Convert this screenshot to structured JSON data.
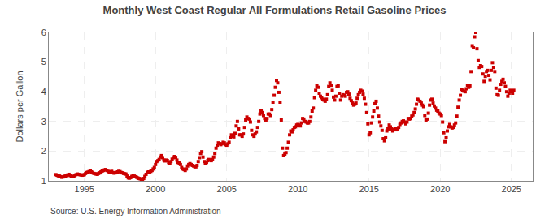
{
  "chart_data": {
    "type": "scatter",
    "title": "Monthly West Coast Regular All Formulations Retail Gasoline Prices",
    "ylabel": "Dollars per Gallon",
    "annotations": [
      "Source: U.S. Energy Information Administration"
    ],
    "color": "#cc0000",
    "marker": "square",
    "grid": true,
    "xlim": [
      1992.5,
      2026.5
    ],
    "xticks": [
      1995,
      2000,
      2005,
      2010,
      2015,
      2020,
      2025
    ],
    "ylim": [
      1,
      6
    ],
    "yticks": [
      1,
      2,
      3,
      4,
      5,
      6
    ],
    "x": [
      1993,
      1993.0833333333333,
      1993.1666666666667,
      1993.25,
      1993.3333333333333,
      1993.4166666666667,
      1993.5,
      1993.5833333333333,
      1993.6666666666667,
      1993.75,
      1993.8333333333333,
      1993.9166666666667,
      1994,
      1994.0833333333333,
      1994.1666666666667,
      1994.25,
      1994.3333333333333,
      1994.4166666666667,
      1994.5,
      1994.5833333333333,
      1994.6666666666667,
      1994.75,
      1994.8333333333333,
      1994.9166666666667,
      1995,
      1995.0833333333333,
      1995.1666666666667,
      1995.25,
      1995.3333333333333,
      1995.4166666666667,
      1995.5,
      1995.5833333333333,
      1995.6666666666667,
      1995.75,
      1995.8333333333333,
      1995.9166666666667,
      1996,
      1996.0833333333333,
      1996.1666666666667,
      1996.25,
      1996.3333333333333,
      1996.4166666666667,
      1996.5,
      1996.5833333333333,
      1996.6666666666667,
      1996.75,
      1996.8333333333333,
      1996.9166666666667,
      1997,
      1997.0833333333333,
      1997.1666666666667,
      1997.25,
      1997.3333333333333,
      1997.4166666666667,
      1997.5,
      1997.5833333333333,
      1997.6666666666667,
      1997.75,
      1997.8333333333333,
      1997.9166666666667,
      1998,
      1998.0833333333333,
      1998.1666666666667,
      1998.25,
      1998.3333333333333,
      1998.4166666666667,
      1998.5,
      1998.5833333333333,
      1998.6666666666667,
      1998.75,
      1998.8333333333333,
      1998.9166666666667,
      1999,
      1999.0833333333333,
      1999.1666666666667,
      1999.25,
      1999.3333333333333,
      1999.4166666666667,
      1999.5,
      1999.5833333333333,
      1999.6666666666667,
      1999.75,
      1999.8333333333333,
      1999.9166666666667,
      2000,
      2000.0833333333333,
      2000.1666666666667,
      2000.25,
      2000.3333333333333,
      2000.4166666666667,
      2000.5,
      2000.5833333333333,
      2000.6666666666667,
      2000.75,
      2000.8333333333333,
      2000.9166666666667,
      2001,
      2001.0833333333333,
      2001.1666666666667,
      2001.25,
      2001.3333333333333,
      2001.4166666666667,
      2001.5,
      2001.5833333333333,
      2001.6666666666667,
      2001.75,
      2001.8333333333333,
      2001.9166666666667,
      2002,
      2002.0833333333333,
      2002.1666666666667,
      2002.25,
      2002.3333333333333,
      2002.4166666666667,
      2002.5,
      2002.5833333333333,
      2002.6666666666667,
      2002.75,
      2002.8333333333333,
      2002.9166666666667,
      2003,
      2003.0833333333333,
      2003.1666666666667,
      2003.25,
      2003.3333333333333,
      2003.4166666666667,
      2003.5,
      2003.5833333333333,
      2003.6666666666667,
      2003.75,
      2003.8333333333333,
      2003.9166666666667,
      2004,
      2004.0833333333333,
      2004.1666666666667,
      2004.25,
      2004.3333333333333,
      2004.4166666666667,
      2004.5,
      2004.5833333333333,
      2004.6666666666667,
      2004.75,
      2004.8333333333333,
      2004.9166666666667,
      2005,
      2005.0833333333333,
      2005.1666666666667,
      2005.25,
      2005.3333333333333,
      2005.4166666666667,
      2005.5,
      2005.5833333333333,
      2005.6666666666667,
      2005.75,
      2005.8333333333333,
      2005.9166666666667,
      2006,
      2006.0833333333333,
      2006.1666666666667,
      2006.25,
      2006.3333333333333,
      2006.4166666666667,
      2006.5,
      2006.5833333333333,
      2006.6666666666667,
      2006.75,
      2006.8333333333333,
      2006.9166666666667,
      2007,
      2007.0833333333333,
      2007.1666666666667,
      2007.25,
      2007.3333333333333,
      2007.4166666666667,
      2007.5,
      2007.5833333333333,
      2007.6666666666667,
      2007.75,
      2007.8333333333333,
      2007.9166666666667,
      2008,
      2008.0833333333333,
      2008.1666666666667,
      2008.25,
      2008.3333333333333,
      2008.4166666666667,
      2008.5,
      2008.5833333333333,
      2008.6666666666667,
      2008.75,
      2008.8333333333333,
      2008.9166666666667,
      2009,
      2009.0833333333333,
      2009.1666666666667,
      2009.25,
      2009.3333333333333,
      2009.4166666666667,
      2009.5,
      2009.5833333333333,
      2009.6666666666667,
      2009.75,
      2009.8333333333333,
      2009.9166666666667,
      2010,
      2010.0833333333333,
      2010.1666666666667,
      2010.25,
      2010.3333333333333,
      2010.4166666666667,
      2010.5,
      2010.5833333333333,
      2010.6666666666667,
      2010.75,
      2010.8333333333333,
      2010.9166666666667,
      2011,
      2011.0833333333333,
      2011.1666666666667,
      2011.25,
      2011.3333333333333,
      2011.4166666666667,
      2011.5,
      2011.5833333333333,
      2011.6666666666667,
      2011.75,
      2011.8333333333333,
      2011.9166666666667,
      2012,
      2012.0833333333333,
      2012.1666666666667,
      2012.25,
      2012.3333333333333,
      2012.4166666666667,
      2012.5,
      2012.5833333333333,
      2012.6666666666667,
      2012.75,
      2012.8333333333333,
      2012.9166666666667,
      2013,
      2013.0833333333333,
      2013.1666666666667,
      2013.25,
      2013.3333333333333,
      2013.4166666666667,
      2013.5,
      2013.5833333333333,
      2013.6666666666667,
      2013.75,
      2013.8333333333333,
      2013.9166666666667,
      2014,
      2014.0833333333333,
      2014.1666666666667,
      2014.25,
      2014.3333333333333,
      2014.4166666666667,
      2014.5,
      2014.5833333333333,
      2014.6666666666667,
      2014.75,
      2014.8333333333333,
      2014.9166666666667,
      2015,
      2015.0833333333333,
      2015.1666666666667,
      2015.25,
      2015.3333333333333,
      2015.4166666666667,
      2015.5,
      2015.5833333333333,
      2015.6666666666667,
      2015.75,
      2015.8333333333333,
      2015.9166666666667,
      2016,
      2016.0833333333333,
      2016.1666666666667,
      2016.25,
      2016.3333333333333,
      2016.4166666666667,
      2016.5,
      2016.5833333333333,
      2016.6666666666667,
      2016.75,
      2016.8333333333333,
      2016.9166666666667,
      2017,
      2017.0833333333333,
      2017.1666666666667,
      2017.25,
      2017.3333333333333,
      2017.4166666666667,
      2017.5,
      2017.5833333333333,
      2017.6666666666667,
      2017.75,
      2017.8333333333333,
      2017.9166666666667,
      2018,
      2018.0833333333333,
      2018.1666666666667,
      2018.25,
      2018.3333333333333,
      2018.4166666666667,
      2018.5,
      2018.5833333333333,
      2018.6666666666667,
      2018.75,
      2018.8333333333333,
      2018.9166666666667,
      2019,
      2019.0833333333333,
      2019.1666666666667,
      2019.25,
      2019.3333333333333,
      2019.4166666666667,
      2019.5,
      2019.5833333333333,
      2019.6666666666667,
      2019.75,
      2019.8333333333333,
      2019.9166666666667,
      2020,
      2020.0833333333333,
      2020.1666666666667,
      2020.25,
      2020.3333333333333,
      2020.4166666666667,
      2020.5,
      2020.5833333333333,
      2020.6666666666667,
      2020.75,
      2020.8333333333333,
      2020.9166666666667,
      2021,
      2021.0833333333333,
      2021.1666666666667,
      2021.25,
      2021.3333333333333,
      2021.4166666666667,
      2021.5,
      2021.5833333333333,
      2021.6666666666667,
      2021.75,
      2021.8333333333333,
      2021.9166666666667,
      2022,
      2022.0833333333333,
      2022.1666666666667,
      2022.25,
      2022.3333333333333,
      2022.4166666666667,
      2022.5,
      2022.5833333333333,
      2022.6666666666667,
      2022.75,
      2022.8333333333333,
      2022.9166666666667,
      2023,
      2023.0833333333333,
      2023.1666666666667,
      2023.25,
      2023.3333333333333,
      2023.4166666666667,
      2023.5,
      2023.5833333333333,
      2023.6666666666667,
      2023.75,
      2023.8333333333333,
      2023.9166666666667,
      2024,
      2024.0833333333333,
      2024.1666666666667,
      2024.25,
      2024.3333333333333,
      2024.4166666666667,
      2024.5,
      2024.5833333333333,
      2024.6666666666667,
      2024.75,
      2024.8333333333333,
      2024.9166666666667,
      2025,
      2025.0833333333333,
      2025.1666666666667
    ],
    "values": [
      1.21,
      1.19,
      1.17,
      1.16,
      1.14,
      1.12,
      1.13,
      1.15,
      1.16,
      1.18,
      1.2,
      1.22,
      1.18,
      1.15,
      1.14,
      1.15,
      1.18,
      1.21,
      1.23,
      1.22,
      1.21,
      1.2,
      1.19,
      1.2,
      1.21,
      1.25,
      1.28,
      1.29,
      1.31,
      1.33,
      1.3,
      1.27,
      1.25,
      1.24,
      1.23,
      1.22,
      1.25,
      1.27,
      1.3,
      1.33,
      1.35,
      1.37,
      1.38,
      1.35,
      1.32,
      1.29,
      1.3,
      1.32,
      1.28,
      1.26,
      1.27,
      1.28,
      1.3,
      1.32,
      1.31,
      1.28,
      1.27,
      1.25,
      1.24,
      1.23,
      1.16,
      1.1,
      1.09,
      1.11,
      1.15,
      1.17,
      1.16,
      1.14,
      1.12,
      1.1,
      1.08,
      1.07,
      1.05,
      1.03,
      1.08,
      1.15,
      1.22,
      1.28,
      1.3,
      1.29,
      1.32,
      1.35,
      1.4,
      1.45,
      1.55,
      1.65,
      1.68,
      1.72,
      1.8,
      1.85,
      1.78,
      1.7,
      1.67,
      1.7,
      1.68,
      1.62,
      1.6,
      1.65,
      1.73,
      1.78,
      1.82,
      1.79,
      1.7,
      1.62,
      1.6,
      1.55,
      1.45,
      1.4,
      1.38,
      1.35,
      1.4,
      1.5,
      1.55,
      1.58,
      1.55,
      1.52,
      1.5,
      1.48,
      1.47,
      1.52,
      1.65,
      1.78,
      1.92,
      1.98,
      1.8,
      1.65,
      1.6,
      1.62,
      1.68,
      1.72,
      1.7,
      1.68,
      1.72,
      1.8,
      1.92,
      2.1,
      2.2,
      2.28,
      2.25,
      2.22,
      2.25,
      2.3,
      2.28,
      2.22,
      2.2,
      2.25,
      2.3,
      2.45,
      2.55,
      2.5,
      2.48,
      2.6,
      2.85,
      3.0,
      2.75,
      2.55,
      2.55,
      2.5,
      2.58,
      2.8,
      3.05,
      3.15,
      3.1,
      3.08,
      2.98,
      2.7,
      2.55,
      2.5,
      2.58,
      2.65,
      2.8,
      3.0,
      3.25,
      3.35,
      3.3,
      3.2,
      3.1,
      3.05,
      3.1,
      3.25,
      3.25,
      3.2,
      3.4,
      3.65,
      3.88,
      4.15,
      4.38,
      4.3,
      3.98,
      3.65,
      3.05,
      2.1,
      1.85,
      1.9,
      1.95,
      2.1,
      2.3,
      2.55,
      2.68,
      2.65,
      2.72,
      2.8,
      2.82,
      2.88,
      2.9,
      2.88,
      2.85,
      2.95,
      3.1,
      3.08,
      3.0,
      2.98,
      2.95,
      2.95,
      3.0,
      3.15,
      3.35,
      3.45,
      3.8,
      4.05,
      4.2,
      4.15,
      3.95,
      3.85,
      3.8,
      3.75,
      3.72,
      3.68,
      3.75,
      3.9,
      4.18,
      4.3,
      4.22,
      4.05,
      3.82,
      3.72,
      3.85,
      4.18,
      4.2,
      3.95,
      3.72,
      3.85,
      3.9,
      3.88,
      3.85,
      3.98,
      4.0,
      3.92,
      3.78,
      3.7,
      3.62,
      3.55,
      3.58,
      3.62,
      3.78,
      3.9,
      3.98,
      4.05,
      4.02,
      3.92,
      3.78,
      3.58,
      3.3,
      2.92,
      2.55,
      2.62,
      2.95,
      3.15,
      3.35,
      3.6,
      3.68,
      3.45,
      3.18,
      2.98,
      2.85,
      2.7,
      2.42,
      2.35,
      2.45,
      2.68,
      2.75,
      2.88,
      2.82,
      2.75,
      2.68,
      2.72,
      2.75,
      2.72,
      2.75,
      2.8,
      2.9,
      2.95,
      3.0,
      3.02,
      2.98,
      2.92,
      2.98,
      3.1,
      3.08,
      3.1,
      3.18,
      3.22,
      3.3,
      3.42,
      3.58,
      3.75,
      3.72,
      3.68,
      3.62,
      3.55,
      3.5,
      3.2,
      3.05,
      3.08,
      3.28,
      3.55,
      3.72,
      3.75,
      3.62,
      3.52,
      3.45,
      3.38,
      3.35,
      3.28,
      3.25,
      3.2,
      2.98,
      2.62,
      2.32,
      2.45,
      2.68,
      2.82,
      2.9,
      2.82,
      2.78,
      2.8,
      2.88,
      2.95,
      3.18,
      3.48,
      3.72,
      3.88,
      4.08,
      4.05,
      4.02,
      4.0,
      4.1,
      4.22,
      4.15,
      4.2,
      4.68,
      5.55,
      5.48,
      5.85,
      6.0,
      5.45,
      5.05,
      4.82,
      4.88,
      4.85,
      4.6,
      4.35,
      4.52,
      4.68,
      4.72,
      4.55,
      4.4,
      4.72,
      4.98,
      4.82,
      4.68,
      4.12,
      3.9,
      3.88,
      4.05,
      4.25,
      4.35,
      4.42,
      4.3,
      4.18,
      4.0,
      3.85,
      3.95,
      4.05,
      4.0,
      3.95,
      4.05
    ]
  }
}
